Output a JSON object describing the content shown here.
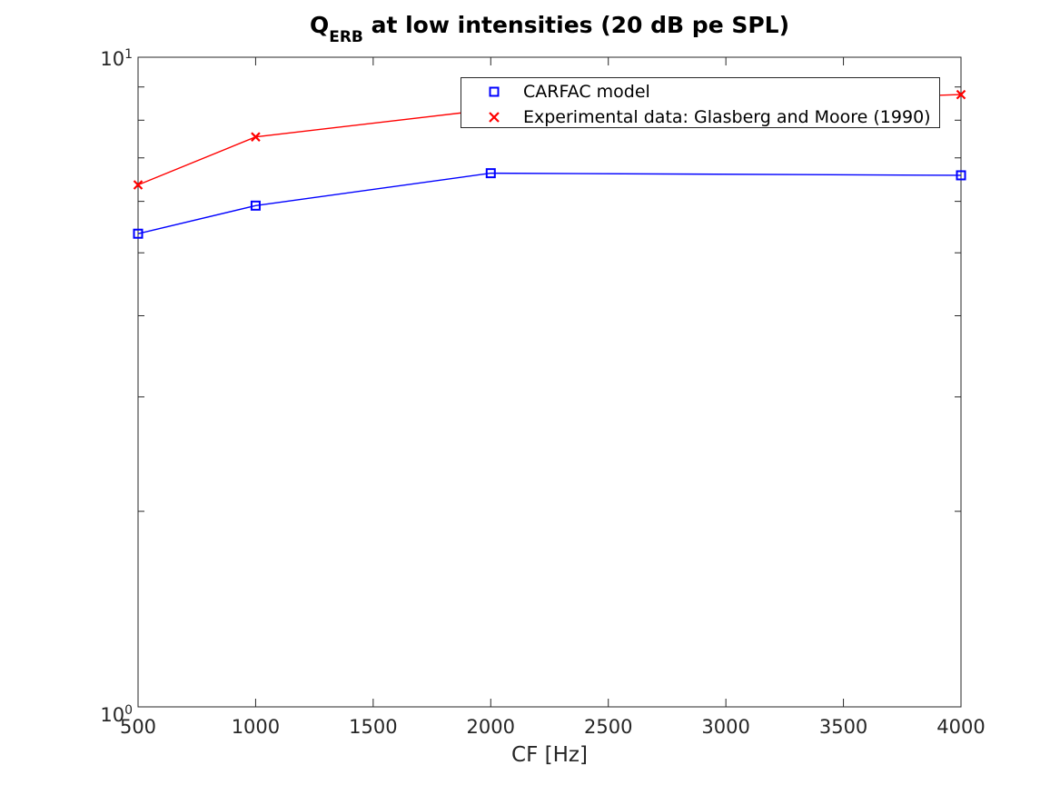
{
  "chart_data": {
    "type": "line",
    "title": {
      "full": "Q_ERB at low intensities (20 dB pe SPL)",
      "prefix": "Q",
      "subscript": "ERB",
      "suffix": " at low intensities (20 dB pe SPL)"
    },
    "xlabel": "CF [Hz]",
    "ylabel": "",
    "x_scale": "linear",
    "y_scale": "log10",
    "xlim": [
      500,
      4000
    ],
    "ylim": [
      1,
      10
    ],
    "grid": false,
    "x_ticks": [
      {
        "value": 500,
        "label": "500"
      },
      {
        "value": 1000,
        "label": "1000"
      },
      {
        "value": 1500,
        "label": "1500"
      },
      {
        "value": 2000,
        "label": "2000"
      },
      {
        "value": 2500,
        "label": "2500"
      },
      {
        "value": 3000,
        "label": "3000"
      },
      {
        "value": 3500,
        "label": "3500"
      },
      {
        "value": 4000,
        "label": "4000"
      }
    ],
    "y_ticks": [
      {
        "value": 1,
        "base": "10",
        "exponent": "0"
      },
      {
        "value": 10,
        "base": "10",
        "exponent": "1"
      }
    ],
    "y_minor_ticks": [
      2,
      3,
      4,
      5,
      6,
      7,
      8,
      9
    ],
    "x": [
      500,
      1000,
      2000,
      4000
    ],
    "series": [
      {
        "name": "CARFAC model",
        "color": "#0000ff",
        "marker": "square",
        "values": [
          5.35,
          5.91,
          6.63,
          6.58
        ]
      },
      {
        "name": "Experimental data: Glasberg and Moore (1990)",
        "color": "#ff0000",
        "marker": "x",
        "values": [
          6.36,
          7.54,
          8.31,
          8.76
        ]
      }
    ],
    "legend": {
      "position": "top-inside-right"
    },
    "colors": {
      "axis": "#262626",
      "title": "#000000",
      "legend_text": "#000000",
      "background": "#ffffff",
      "series_blue": "#0000ff",
      "series_red": "#ff0000"
    }
  }
}
